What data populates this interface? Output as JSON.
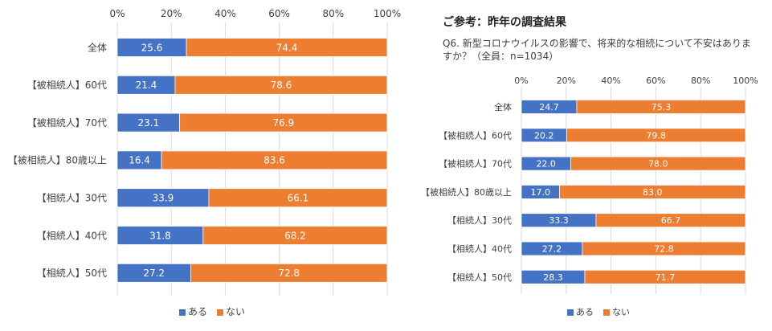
{
  "reference": {
    "title": "ご参考：昨年の調査結果",
    "question": "Q6. 新型コロナウイルスの影響で、将来的な相続について不安はありますか？（全員：n=1034）"
  },
  "colors": {
    "aru": "#4472C4",
    "nai": "#ED7D31",
    "grid": "#D9D9D9",
    "text": "#404040"
  },
  "chart_data": [
    {
      "type": "bar",
      "orientation": "horizontal",
      "stacked": "percent",
      "categories": [
        "全体",
        "【被相続人】60代",
        "【被相続人】70代",
        "【被相続人】80歳以上",
        "【相続人】30代",
        "【相続人】40代",
        "【相続人】50代"
      ],
      "series": [
        {
          "name": "ある",
          "values": [
            25.6,
            21.4,
            23.1,
            16.4,
            33.9,
            31.8,
            27.2
          ]
        },
        {
          "name": "ない",
          "values": [
            74.4,
            78.6,
            76.9,
            83.6,
            66.1,
            68.2,
            72.8
          ]
        }
      ],
      "xticks": [
        "0%",
        "20%",
        "40%",
        "60%",
        "80%",
        "100%"
      ],
      "xlim": [
        0,
        100
      ],
      "legend": "bottom",
      "grid": true
    },
    {
      "type": "bar",
      "orientation": "horizontal",
      "stacked": "percent",
      "categories": [
        "全体",
        "【被相続人】60代",
        "【被相続人】70代",
        "【被相続人】80歳以上",
        "【相続人】30代",
        "【相続人】40代",
        "【相続人】50代"
      ],
      "series": [
        {
          "name": "ある",
          "values": [
            24.7,
            20.2,
            22.0,
            17.0,
            33.3,
            27.2,
            28.3
          ]
        },
        {
          "name": "ない",
          "values": [
            75.3,
            79.8,
            78.0,
            83.0,
            66.7,
            72.8,
            71.7
          ]
        }
      ],
      "xticks": [
        "0%",
        "20%",
        "40%",
        "60%",
        "80%",
        "100%"
      ],
      "xlim": [
        0,
        100
      ],
      "legend": "bottom",
      "grid": true
    }
  ]
}
